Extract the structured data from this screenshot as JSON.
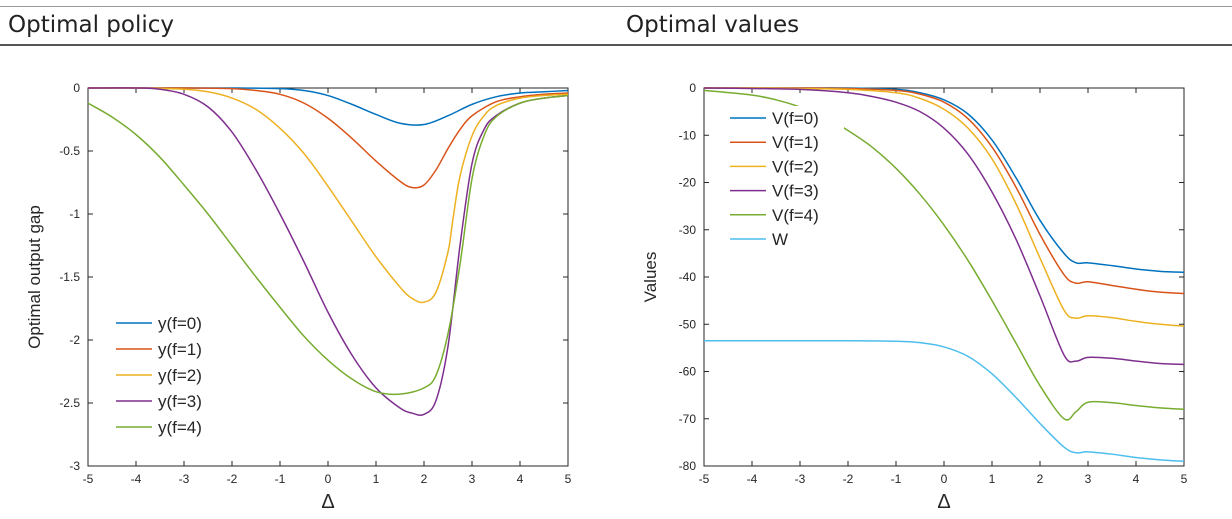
{
  "sections": {
    "left_title": "Optimal policy",
    "right_title": "Optimal values"
  },
  "chart_data": [
    {
      "type": "line",
      "xlabel": "Δ",
      "ylabel": "Optimal output gap",
      "xlim": [
        -5,
        5
      ],
      "ylim": [
        -3,
        0
      ],
      "xticks": [
        -5,
        -4,
        -3,
        -2,
        -1,
        0,
        1,
        2,
        3,
        4,
        5
      ],
      "yticks": [
        0,
        -0.5,
        -1,
        -1.5,
        -2,
        -2.5,
        -3
      ],
      "legend_position": "lower-left",
      "grid": false,
      "series": [
        {
          "name": "y(f=0)",
          "color": "#0072BD",
          "x": [
            -5,
            -4,
            -3,
            -2,
            -1,
            -0.5,
            0,
            0.5,
            1,
            1.5,
            2,
            2.5,
            3,
            3.5,
            4,
            4.5,
            5
          ],
          "y": [
            0,
            0,
            0,
            0,
            -0.005,
            -0.02,
            -0.06,
            -0.13,
            -0.21,
            -0.28,
            -0.29,
            -0.22,
            -0.13,
            -0.07,
            -0.04,
            -0.03,
            -0.02
          ]
        },
        {
          "name": "y(f=1)",
          "color": "#D95319",
          "x": [
            -5,
            -4,
            -3,
            -2,
            -1.5,
            -1,
            -0.5,
            0,
            0.5,
            1,
            1.5,
            1.75,
            2,
            2.25,
            2.5,
            2.75,
            3,
            3.5,
            4,
            4.5,
            5
          ],
          "y": [
            0,
            0,
            0,
            -0.005,
            -0.02,
            -0.05,
            -0.12,
            -0.24,
            -0.4,
            -0.58,
            -0.74,
            -0.79,
            -0.77,
            -0.65,
            -0.48,
            -0.33,
            -0.22,
            -0.11,
            -0.07,
            -0.05,
            -0.04
          ]
        },
        {
          "name": "y(f=2)",
          "color": "#EDB120",
          "x": [
            -5,
            -4,
            -3,
            -2.5,
            -2,
            -1.5,
            -1,
            -0.5,
            0,
            0.5,
            1,
            1.5,
            1.75,
            2,
            2.25,
            2.5,
            2.6,
            2.75,
            3,
            3.25,
            3.5,
            4,
            4.5,
            5
          ],
          "y": [
            0,
            0,
            -0.01,
            -0.03,
            -0.08,
            -0.17,
            -0.32,
            -0.52,
            -0.78,
            -1.06,
            -1.34,
            -1.58,
            -1.67,
            -1.7,
            -1.62,
            -1.3,
            -1.05,
            -0.7,
            -0.38,
            -0.22,
            -0.14,
            -0.08,
            -0.06,
            -0.05
          ]
        },
        {
          "name": "y(f=3)",
          "color": "#7E2F8E",
          "x": [
            -5,
            -4,
            -3.5,
            -3,
            -2.5,
            -2,
            -1.5,
            -1,
            -0.5,
            0,
            0.5,
            1,
            1.5,
            1.75,
            2,
            2.25,
            2.5,
            2.75,
            3,
            3.25,
            3.5,
            4,
            4.5,
            5
          ],
          "y": [
            0,
            0,
            -0.01,
            -0.05,
            -0.15,
            -0.35,
            -0.65,
            -1.0,
            -1.38,
            -1.78,
            -2.12,
            -2.38,
            -2.54,
            -2.58,
            -2.59,
            -2.48,
            -2.05,
            -1.25,
            -0.6,
            -0.33,
            -0.22,
            -0.12,
            -0.08,
            -0.06
          ]
        },
        {
          "name": "y(f=4)",
          "color": "#77AC30",
          "x": [
            -5,
            -4.5,
            -4,
            -3.5,
            -3,
            -2.5,
            -2,
            -1.5,
            -1,
            -0.5,
            0,
            0.5,
            1,
            1.5,
            2,
            2.25,
            2.5,
            2.75,
            3,
            3.25,
            3.5,
            4,
            4.5,
            5
          ],
          "y": [
            -0.12,
            -0.23,
            -0.37,
            -0.55,
            -0.77,
            -1.0,
            -1.25,
            -1.5,
            -1.74,
            -1.97,
            -2.16,
            -2.31,
            -2.41,
            -2.43,
            -2.38,
            -2.28,
            -1.95,
            -1.4,
            -0.72,
            -0.38,
            -0.23,
            -0.12,
            -0.08,
            -0.06
          ]
        }
      ]
    },
    {
      "type": "line",
      "xlabel": "Δ",
      "ylabel": "Values",
      "xlim": [
        -5,
        5
      ],
      "ylim": [
        -80,
        0
      ],
      "xticks": [
        -5,
        -4,
        -3,
        -2,
        -1,
        0,
        1,
        2,
        3,
        4,
        5
      ],
      "yticks": [
        0,
        -10,
        -20,
        -30,
        -40,
        -50,
        -60,
        -70,
        -80
      ],
      "legend_position": "top-left",
      "grid": false,
      "series": [
        {
          "name": "V(f=0)",
          "color": "#0072BD",
          "x": [
            -5,
            -4,
            -3,
            -2,
            -1,
            -0.5,
            0,
            0.5,
            1,
            1.5,
            2,
            2.5,
            2.75,
            3,
            3.5,
            4,
            4.5,
            5
          ],
          "y": [
            0,
            0,
            0,
            0,
            -0.3,
            -1,
            -2.5,
            -5.5,
            -11,
            -19,
            -28,
            -35,
            -37,
            -37,
            -37.6,
            -38.3,
            -38.8,
            -39
          ]
        },
        {
          "name": "V(f=1)",
          "color": "#D95319",
          "x": [
            -5,
            -4,
            -3,
            -2,
            -1,
            -0.5,
            0,
            0.5,
            1,
            1.5,
            2,
            2.5,
            2.75,
            3,
            3.5,
            4,
            4.5,
            5
          ],
          "y": [
            0,
            0,
            0,
            -0.1,
            -0.5,
            -1.3,
            -3,
            -6.5,
            -12.5,
            -21,
            -31,
            -39.5,
            -41.3,
            -41,
            -41.8,
            -42.6,
            -43.2,
            -43.5
          ]
        },
        {
          "name": "V(f=2)",
          "color": "#EDB120",
          "x": [
            -5,
            -4,
            -3,
            -2,
            -1,
            -0.5,
            0,
            0.5,
            1,
            1.5,
            2,
            2.5,
            2.75,
            3,
            3.5,
            4,
            4.5,
            5
          ],
          "y": [
            0,
            0,
            -0.1,
            -0.3,
            -1,
            -2.2,
            -4.5,
            -8.5,
            -15,
            -24.5,
            -36,
            -47,
            -48.7,
            -48.2,
            -48.6,
            -49.4,
            -50,
            -50.4
          ]
        },
        {
          "name": "V(f=3)",
          "color": "#7E2F8E",
          "x": [
            -5,
            -4,
            -3,
            -2,
            -1.5,
            -1,
            -0.5,
            0,
            0.5,
            1,
            1.5,
            2,
            2.5,
            2.75,
            3,
            3.5,
            4,
            4.5,
            5
          ],
          "y": [
            0,
            -0.1,
            -0.3,
            -1,
            -1.8,
            -3,
            -5,
            -8.5,
            -14,
            -22,
            -32,
            -44,
            -56.5,
            -57.8,
            -57,
            -57.2,
            -57.8,
            -58.3,
            -58.5
          ]
        },
        {
          "name": "V(f=4)",
          "color": "#77AC30",
          "x": [
            -5,
            -4,
            -3.5,
            -3,
            -2.5,
            -2,
            -1.5,
            -1,
            -0.5,
            0,
            0.5,
            1,
            1.5,
            2,
            2.5,
            2.75,
            3,
            3.5,
            4,
            4.5,
            5
          ],
          "y": [
            -0.5,
            -1.5,
            -2.5,
            -4,
            -6,
            -9,
            -12.5,
            -17,
            -22.5,
            -29,
            -36.5,
            -45,
            -54,
            -63,
            -70,
            -68.5,
            -66.5,
            -66.6,
            -67.2,
            -67.7,
            -68
          ]
        },
        {
          "name": "W",
          "color": "#4DBEEE",
          "x": [
            -5,
            -4,
            -3,
            -2,
            -1,
            -0.5,
            0,
            0.5,
            1,
            1.5,
            2,
            2.5,
            2.75,
            3,
            3.5,
            4,
            4.5,
            5
          ],
          "y": [
            -53.5,
            -53.5,
            -53.5,
            -53.5,
            -53.6,
            -53.9,
            -54.8,
            -56.8,
            -60.5,
            -65.5,
            -71,
            -76,
            -77.2,
            -77,
            -77.5,
            -78.2,
            -78.7,
            -79
          ]
        }
      ]
    }
  ]
}
